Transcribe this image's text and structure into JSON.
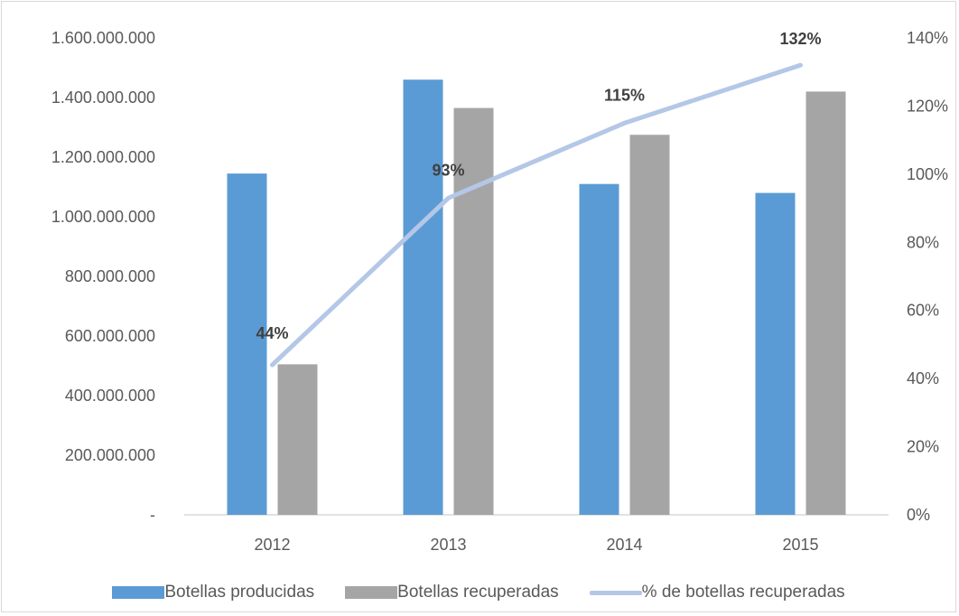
{
  "chart_data": {
    "type": "bar",
    "categories": [
      "2012",
      "2013",
      "2014",
      "2015"
    ],
    "series": [
      {
        "name": "Botellas producidas",
        "kind": "bar",
        "axis": "left",
        "color": "#5b9bd5",
        "values": [
          1145000000,
          1460000000,
          1110000000,
          1080000000
        ]
      },
      {
        "name": "Botellas recuperadas",
        "kind": "bar",
        "axis": "left",
        "color": "#a5a5a5",
        "values": [
          505000000,
          1365000000,
          1275000000,
          1420000000
        ]
      },
      {
        "name": "% de botellas recuperadas",
        "kind": "line",
        "axis": "right",
        "color": "#b4c7e7",
        "values": [
          44,
          93,
          115,
          132
        ],
        "labels": [
          "44%",
          "93%",
          "115%",
          "132%"
        ]
      }
    ],
    "left_axis": {
      "ylim": [
        0,
        1600000000
      ],
      "ticks": [
        "-",
        "200.000.000",
        "400.000.000",
        "600.000.000",
        "800.000.000",
        "1.000.000.000",
        "1.200.000.000",
        "1.400.000.000",
        "1.600.000.000"
      ]
    },
    "right_axis": {
      "ylim": [
        0,
        140
      ],
      "ticks": [
        "0%",
        "20%",
        "40%",
        "60%",
        "80%",
        "100%",
        "120%",
        "140%"
      ]
    },
    "grid": false,
    "legend_position": "bottom"
  }
}
